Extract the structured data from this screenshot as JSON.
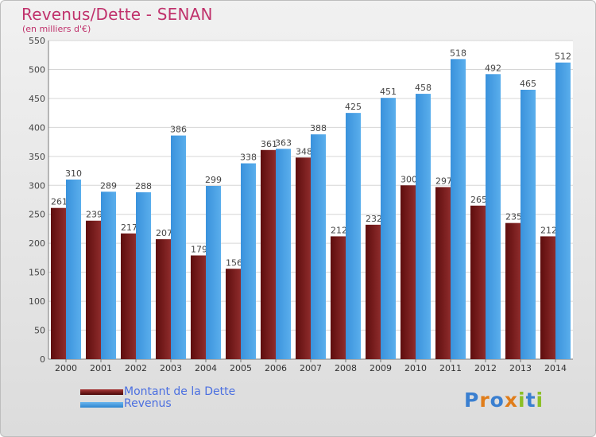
{
  "title": "Revenus/Dette - SENAN",
  "subtitle": "(en milliers d'€)",
  "chart_data": {
    "type": "bar",
    "categories": [
      "2000",
      "2001",
      "2002",
      "2003",
      "2004",
      "2005",
      "2006",
      "2007",
      "2008",
      "2009",
      "2010",
      "2011",
      "2012",
      "2013",
      "2014"
    ],
    "series": [
      {
        "name": "Montant de la Dette",
        "color": "#7b1c1c",
        "values": [
          261,
          239,
          217,
          207,
          179,
          156,
          361,
          348,
          212,
          232,
          300,
          297,
          265,
          235,
          212
        ]
      },
      {
        "name": "Revenus",
        "color": "#3f9ae0",
        "values": [
          310,
          289,
          288,
          386,
          299,
          338,
          363,
          388,
          425,
          451,
          458,
          518,
          492,
          465,
          512
        ]
      }
    ],
    "ylim": [
      0,
      550
    ],
    "yticks": [
      0,
      50,
      100,
      150,
      200,
      250,
      300,
      350,
      400,
      450,
      500,
      550
    ],
    "grid": true,
    "legend_position": "bottom-left"
  },
  "legend": {
    "debt_label": "Montant de la Dette",
    "revenue_label": "Revenus"
  },
  "logo": {
    "text": "Proxiti",
    "letters": [
      {
        "ch": "P",
        "color": "#3a7fd0"
      },
      {
        "ch": "r",
        "color": "#e07d1a"
      },
      {
        "ch": "o",
        "color": "#3a7fd0"
      },
      {
        "ch": "x",
        "color": "#e07d1a"
      },
      {
        "ch": "i",
        "color": "#8cbf26"
      },
      {
        "ch": "t",
        "color": "#3a7fd0"
      },
      {
        "ch": "i",
        "color": "#8cbf26"
      }
    ]
  }
}
